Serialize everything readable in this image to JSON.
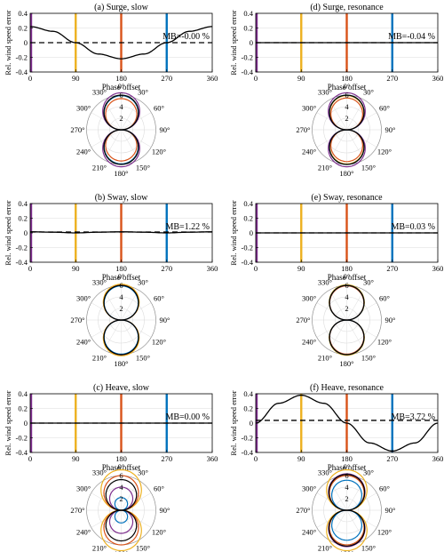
{
  "figure": {
    "colors": {
      "purple": "#7E2F8E",
      "yellow": "#EDB120",
      "orange": "#D95319",
      "blue": "#0072BD",
      "black": "#000000",
      "grid": "#dcdcdc"
    },
    "shared": {
      "ylabel": "Rel. wind speed error",
      "xlabel": "Phase offset",
      "xticks": [
        "0",
        "90",
        "180",
        "270",
        "360"
      ],
      "yticks": [
        "0.4",
        "0.2",
        "0",
        "-0.2",
        "-0.4"
      ],
      "polar_angle_labels": [
        "0°",
        "30°",
        "60°",
        "90°",
        "120°",
        "150°",
        "180°",
        "210°",
        "240°",
        "270°",
        "300°",
        "330°"
      ],
      "polar_radial_labels": [
        "2",
        "4",
        "6"
      ]
    }
  },
  "chart_data": [
    {
      "type": "line",
      "title": "(a) Surge, slow",
      "annotation": "MB=-0.00 %",
      "xlim": [
        0,
        360
      ],
      "ylim": [
        -0.4,
        0.4
      ],
      "vlines": [
        0,
        90,
        180,
        270
      ],
      "series": [
        {
          "style": "solid",
          "x": [
            0,
            45,
            90,
            135,
            180,
            225,
            270,
            315,
            360
          ],
          "values": [
            0.22,
            0.155,
            0.0,
            -0.155,
            -0.22,
            -0.155,
            0.0,
            0.155,
            0.22
          ]
        },
        {
          "style": "dashed",
          "x": [
            0,
            360
          ],
          "values": [
            0.0,
            0.0
          ]
        }
      ],
      "polar": {
        "rlim": [
          0,
          6
        ],
        "curves": [
          {
            "color": "purple",
            "lobe_r": 6.4
          },
          {
            "color": "yellow",
            "lobe_r": 5.9
          },
          {
            "color": "orange",
            "lobe_r": 5.4
          },
          {
            "color": "blue",
            "lobe_r": 5.9
          },
          {
            "color": "black",
            "lobe_r": 6.0
          }
        ]
      }
    },
    {
      "type": "line",
      "title": "(d) Surge, resonance",
      "annotation": "MB=-0.04 %",
      "xlim": [
        0,
        360
      ],
      "ylim": [
        -0.4,
        0.4
      ],
      "vlines": [
        0,
        90,
        180,
        270
      ],
      "series": [
        {
          "style": "solid",
          "x": [
            0,
            360
          ],
          "values": [
            0.0,
            0.0
          ]
        },
        {
          "style": "dashed",
          "x": [
            0,
            360
          ],
          "values": [
            0.0,
            0.0
          ]
        }
      ],
      "polar": {
        "rlim": [
          0,
          6
        ],
        "curves": [
          {
            "color": "purple",
            "lobe_r": 6.4
          },
          {
            "color": "yellow",
            "lobe_r": 5.9
          },
          {
            "color": "orange",
            "lobe_r": 5.5
          },
          {
            "color": "blue",
            "lobe_r": 6.0
          },
          {
            "color": "black",
            "lobe_r": 6.0
          }
        ]
      }
    },
    {
      "type": "line",
      "title": "(b) Sway, slow",
      "annotation": "MB=1.22 %",
      "xlim": [
        0,
        360
      ],
      "ylim": [
        -0.4,
        0.4
      ],
      "vlines": [
        0,
        90,
        180,
        270
      ],
      "series": [
        {
          "style": "solid",
          "x": [
            0,
            45,
            90,
            135,
            180,
            225,
            270,
            315,
            360
          ],
          "values": [
            0.015,
            0.01,
            0.0,
            0.01,
            0.015,
            0.01,
            0.0,
            0.01,
            0.015
          ]
        },
        {
          "style": "dashed",
          "x": [
            0,
            360
          ],
          "values": [
            0.012,
            0.012
          ]
        }
      ],
      "polar": {
        "rlim": [
          0,
          6
        ],
        "curves": [
          {
            "color": "purple",
            "lobe_r": 6.1
          },
          {
            "color": "yellow",
            "lobe_r": 6.2
          },
          {
            "color": "orange",
            "lobe_r": 6.0
          },
          {
            "color": "blue",
            "lobe_r": 5.9
          },
          {
            "color": "black",
            "lobe_r": 6.0
          }
        ]
      }
    },
    {
      "type": "line",
      "title": "(e) Sway, resonance",
      "annotation": "MB=0.03 %",
      "xlim": [
        0,
        360
      ],
      "ylim": [
        -0.4,
        0.4
      ],
      "vlines": [
        0,
        90,
        180,
        270
      ],
      "series": [
        {
          "style": "solid",
          "x": [
            0,
            360
          ],
          "values": [
            0.0,
            0.0
          ]
        },
        {
          "style": "dashed",
          "x": [
            0,
            360
          ],
          "values": [
            0.0,
            0.0
          ]
        }
      ],
      "polar": {
        "rlim": [
          0,
          6
        ],
        "curves": [
          {
            "color": "purple",
            "lobe_r": 6.0
          },
          {
            "color": "yellow",
            "lobe_r": 6.1
          },
          {
            "color": "orange",
            "lobe_r": 5.9
          },
          {
            "color": "blue",
            "lobe_r": 6.0
          },
          {
            "color": "black",
            "lobe_r": 6.0
          }
        ]
      }
    },
    {
      "type": "line",
      "title": "(c) Heave, slow",
      "annotation": "MB=0.00 %",
      "xlim": [
        0,
        360
      ],
      "ylim": [
        -0.4,
        0.4
      ],
      "vlines": [
        0,
        90,
        180,
        270
      ],
      "series": [
        {
          "style": "solid",
          "x": [
            0,
            360
          ],
          "values": [
            0.0,
            0.0
          ]
        },
        {
          "style": "dashed",
          "x": [
            0,
            360
          ],
          "values": [
            0.0,
            0.0
          ]
        }
      ],
      "polar": {
        "rlim": [
          0,
          6
        ],
        "curves": [
          {
            "color": "purple",
            "lobe_r": 4.0
          },
          {
            "color": "yellow",
            "lobe_r": 7.0
          },
          {
            "color": "orange",
            "lobe_r": 6.0
          },
          {
            "color": "blue",
            "lobe_r": 2.2
          },
          {
            "color": "black",
            "lobe_r": 5.3
          }
        ]
      }
    },
    {
      "type": "line",
      "title": "(f) Heave, resonance",
      "annotation": "MB=3.72 %",
      "xlim": [
        0,
        360
      ],
      "ylim": [
        -0.4,
        0.4
      ],
      "vlines": [
        0,
        90,
        180,
        270
      ],
      "series": [
        {
          "style": "solid",
          "x": [
            0,
            45,
            90,
            135,
            180,
            225,
            270,
            315,
            360
          ],
          "values": [
            0.0,
            0.27,
            0.38,
            0.27,
            0.0,
            -0.27,
            -0.38,
            -0.27,
            0.0
          ]
        },
        {
          "style": "dashed",
          "x": [
            0,
            360
          ],
          "values": [
            0.037,
            0.037
          ]
        }
      ],
      "polar": {
        "rlim": [
          0,
          6
        ],
        "curves": [
          {
            "color": "purple",
            "lobe_r": 6.3
          },
          {
            "color": "yellow",
            "lobe_r": 7.0
          },
          {
            "color": "orange",
            "lobe_r": 6.0
          },
          {
            "color": "blue",
            "lobe_r": 5.2
          },
          {
            "color": "black",
            "lobe_r": 6.2
          }
        ]
      }
    }
  ]
}
